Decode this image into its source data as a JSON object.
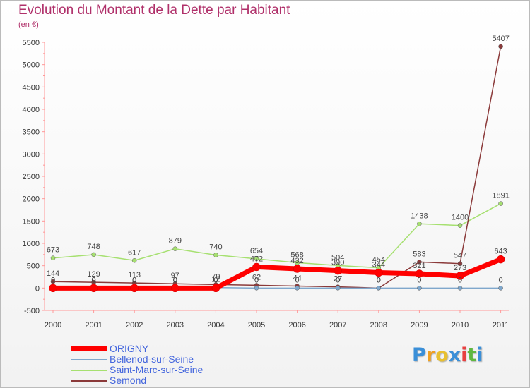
{
  "title": "Evolution du Montant de la Dette par Habitant",
  "subtitle": "(en €)",
  "brand": {
    "text": "Proxiti",
    "letters": [
      "P",
      "r",
      "o",
      "x",
      "i",
      "t",
      "i"
    ],
    "colors": [
      "#3a8fd8",
      "#f0a020",
      "#e8c030",
      "#3a8fd8",
      "#e84040",
      "#60b840",
      "#3a8fd8"
    ]
  },
  "chart_data": {
    "type": "line",
    "title": "Evolution du Montant de la Dette par Habitant",
    "subtitle": "(en €)",
    "xlabel": "",
    "ylabel": "",
    "x": [
      "2000",
      "2001",
      "2002",
      "2003",
      "2004",
      "2005",
      "2006",
      "2007",
      "2008",
      "2009",
      "2010",
      "2011"
    ],
    "ylim": [
      -500,
      5500
    ],
    "yticks": [
      "-500",
      "0",
      "500",
      "1000",
      "1500",
      "2000",
      "2500",
      "3000",
      "3500",
      "4000",
      "4500",
      "5000",
      "5500"
    ],
    "grid": false,
    "legend_position": "bottom-left",
    "series": [
      {
        "name": "ORIGNY",
        "color": "#ff0000",
        "width": 7,
        "values": [
          0,
          0,
          0,
          0,
          0,
          472,
          432,
          390,
          344,
          321,
          273,
          643
        ],
        "labels": [
          "0",
          "0",
          "0",
          "0",
          "0",
          "472",
          "432",
          "390",
          "344",
          "321",
          "273",
          "643"
        ]
      },
      {
        "name": "Bellenod-sur-Seine",
        "color": "#7fa7cc",
        "width": 1.5,
        "values": [
          0,
          0,
          0,
          0,
          12,
          0,
          0,
          0,
          0,
          0,
          0,
          0
        ],
        "labels": [
          "0",
          "0",
          "0",
          "0",
          "12",
          "0",
          "0",
          "0",
          "0",
          "0",
          "0",
          "0"
        ]
      },
      {
        "name": "Saint-Marc-sur-Seine",
        "color": "#a6e070",
        "width": 1.5,
        "values": [
          673,
          748,
          617,
          879,
          740,
          654,
          568,
          504,
          454,
          1438,
          1400,
          1891
        ],
        "labels": [
          "673",
          "748",
          "617",
          "879",
          "740",
          "654",
          "568",
          "504",
          "454",
          "1438",
          "1400",
          "1891"
        ]
      },
      {
        "name": "Semond",
        "color": "#8b3a3a",
        "width": 1.5,
        "values": [
          144,
          129,
          113,
          97,
          79,
          62,
          44,
          27,
          0,
          583,
          547,
          5407
        ],
        "labels": [
          "144",
          "129",
          "113",
          "97",
          "79",
          "62",
          "44",
          "27",
          "0",
          "583",
          "547",
          "5407"
        ]
      }
    ]
  }
}
